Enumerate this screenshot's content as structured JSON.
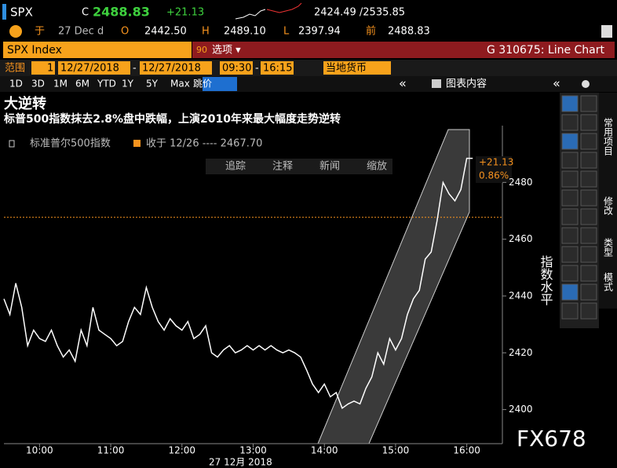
{
  "header": {
    "ticker": "SPX",
    "c_label": "C",
    "last": "2488.83",
    "change": "+21.13",
    "range": "2424.49 /2535.85",
    "row2": {
      "exchange": "于",
      "date": "27 Dec d",
      "o_label": "O",
      "open": "2442.50",
      "h_label": "H",
      "high": "2489.10",
      "l_label": "L",
      "low": "2397.94",
      "prev_label": "前",
      "prev": "2488.83"
    }
  },
  "command": {
    "security": "SPX Index",
    "menu_num": "90",
    "menu": "选项 ▾",
    "function": "G 310675: Line Chart"
  },
  "range_bar": {
    "label": "范围",
    "n": "1",
    "start_date": "12/27/2018",
    "dash1": "-",
    "end_date": "12/27/2018",
    "start_time": "09:30",
    "dash2": "-",
    "end_time": "16:15",
    "currency": "当地货币"
  },
  "periods": [
    "1D",
    "3D",
    "1M",
    "6M",
    "YTD",
    "1Y",
    "5Y",
    "Max",
    "跳价"
  ],
  "chart_menu": "图表内容",
  "side_tabs": [
    "常用项目",
    "修改",
    "类型",
    "模式"
  ],
  "watermark": "FX678",
  "chart_data": {
    "type": "line",
    "title": "大逆转",
    "subtitle": "标普500指数抹去2.8%盘中跌幅，上演2010年来最大幅度走势逆转",
    "buttons": [
      "追踪",
      "注释",
      "新闻",
      "缩放"
    ],
    "ylabel": "指数水平",
    "date_label": "27 12月 2018",
    "change_label": "+21.13",
    "pct_label": "0.86%",
    "reference": {
      "label": "收于 12/26 ---- 2467.70",
      "value": 2467.7,
      "color": "#f7931e"
    },
    "x": [
      "09:30",
      "09:35",
      "09:40",
      "09:45",
      "09:50",
      "09:55",
      "10:00",
      "10:05",
      "10:10",
      "10:15",
      "10:20",
      "10:25",
      "10:30",
      "10:35",
      "10:40",
      "10:45",
      "10:50",
      "10:55",
      "11:00",
      "11:05",
      "11:10",
      "11:15",
      "11:20",
      "11:25",
      "11:30",
      "11:35",
      "11:40",
      "11:45",
      "11:50",
      "11:55",
      "12:00",
      "12:05",
      "12:10",
      "12:15",
      "12:20",
      "12:25",
      "12:30",
      "12:35",
      "12:40",
      "12:45",
      "12:50",
      "12:55",
      "13:00",
      "13:05",
      "13:10",
      "13:15",
      "13:20",
      "13:25",
      "13:30",
      "13:35",
      "13:40",
      "13:45",
      "13:50",
      "13:55",
      "14:00",
      "14:05",
      "14:10",
      "14:15",
      "14:20",
      "14:25",
      "14:30",
      "14:35",
      "14:40",
      "14:45",
      "14:50",
      "14:55",
      "15:00",
      "15:05",
      "15:10",
      "15:15",
      "15:20",
      "15:25",
      "15:30",
      "15:35",
      "15:40",
      "15:45",
      "15:50",
      "15:55",
      "16:00",
      "16:05"
    ],
    "series": [
      {
        "name": "标准普尔500指数",
        "color": "#ffffff",
        "values": [
          2439,
          2433.5,
          2444.5,
          2436,
          2422.5,
          2428,
          2425,
          2424,
          2428,
          2422.5,
          2418.5,
          2421,
          2417,
          2428,
          2422.5,
          2436,
          2428,
          2426.5,
          2425,
          2422.5,
          2424,
          2431,
          2436,
          2433.5,
          2443,
          2436,
          2431,
          2428,
          2432,
          2429.5,
          2428,
          2431,
          2425,
          2426.5,
          2429.5,
          2420,
          2418.5,
          2421,
          2422.5,
          2420,
          2421,
          2422.5,
          2421,
          2422.5,
          2421,
          2422.5,
          2421,
          2420,
          2421,
          2420,
          2418.5,
          2414,
          2409,
          2406,
          2409,
          2404.5,
          2406,
          2400.5,
          2402,
          2403,
          2402,
          2407.5,
          2411.5,
          2420,
          2416,
          2425,
          2421,
          2425,
          2433.5,
          2439,
          2442,
          2453,
          2455.5,
          2466.5,
          2480,
          2476,
          2473.5,
          2477.5,
          2488.5,
          2488.5
        ]
      }
    ],
    "xlim": [
      "09:30",
      "16:30"
    ],
    "xticks": [
      "10:00",
      "11:00",
      "12:00",
      "13:00",
      "14:00",
      "15:00",
      "16:00"
    ],
    "ylim": [
      2388,
      2500
    ],
    "yticks": [
      2400,
      2420,
      2440,
      2460,
      2480
    ]
  }
}
